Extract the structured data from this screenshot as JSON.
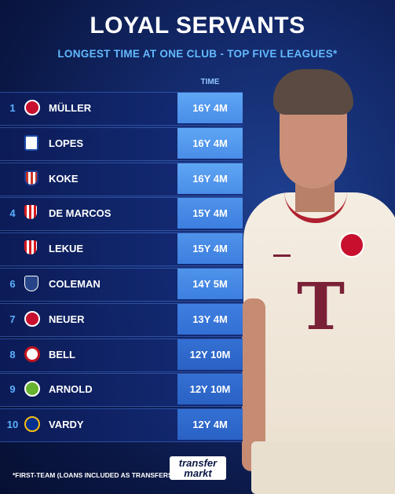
{
  "header": {
    "title": "LOYAL SERVANTS",
    "subtitle": "LONGEST TIME AT ONE CLUB - TOP FIVE LEAGUES*",
    "time_column": "TIME"
  },
  "rows": [
    {
      "rank": "1",
      "name": "MÜLLER",
      "time": "16Y 4M",
      "crest": "bayern-crest",
      "crest_color": "#c8102e"
    },
    {
      "rank": "",
      "name": "LOPES",
      "time": "16Y 4M",
      "crest": "lyon-crest",
      "crest_color": "#1d4aa8"
    },
    {
      "rank": "",
      "name": "KOKE",
      "time": "16Y 4M",
      "crest": "atletico-crest",
      "crest_color": "#cb3524"
    },
    {
      "rank": "4",
      "name": "DE MARCOS",
      "time": "15Y 4M",
      "crest": "athletic-crest",
      "crest_color": "#d71920"
    },
    {
      "rank": "",
      "name": "LEKUE",
      "time": "15Y 4M",
      "crest": "athletic-crest",
      "crest_color": "#d71920"
    },
    {
      "rank": "6",
      "name": "COLEMAN",
      "time": "14Y 5M",
      "crest": "everton-crest",
      "crest_color": "#274488"
    },
    {
      "rank": "7",
      "name": "NEUER",
      "time": "13Y 4M",
      "crest": "bayern-crest",
      "crest_color": "#c8102e"
    },
    {
      "rank": "8",
      "name": "BELL",
      "time": "12Y 10M",
      "crest": "mainz-crest",
      "crest_color": "#c3141e"
    },
    {
      "rank": "9",
      "name": "ARNOLD",
      "time": "12Y 10M",
      "crest": "wolfsburg-crest",
      "crest_color": "#65b32e"
    },
    {
      "rank": "10",
      "name": "VARDY",
      "time": "12Y 4M",
      "crest": "leicester-crest",
      "crest_color": "#003090"
    }
  ],
  "footer": {
    "note": "*FIRST-TEAM (LOANS INCLUDED AS TRANSFERS)",
    "logo_top": "transfer",
    "logo_bottom": "markt"
  }
}
